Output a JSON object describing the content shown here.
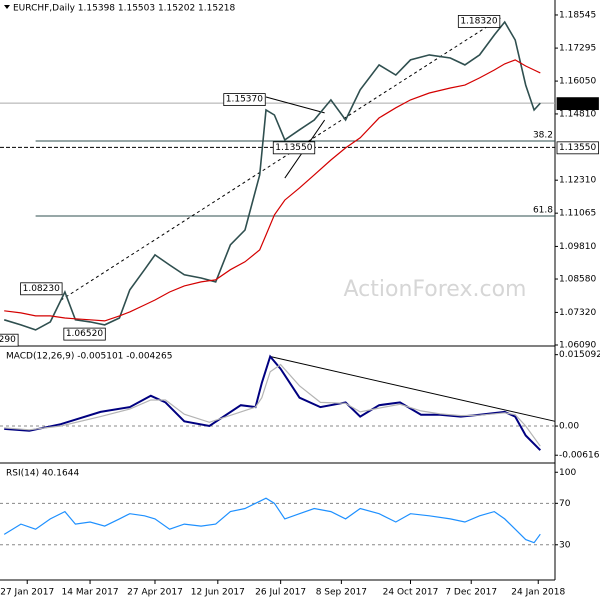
{
  "chart_data": [
    {
      "type": "line",
      "title": "EURCHF,Daily  1.15398 1.15503 1.15202 1.15218",
      "watermark": "ActionForex.com",
      "xlim": [
        0,
        265
      ],
      "ylim": [
        1.0609,
        1.1911
      ],
      "yticks": [
        1.18545,
        1.17295,
        {
          "value": 1.1605,
          "label": "1.16050"
        },
        {
          "value": 1.1481,
          "label": "1.14810"
        },
        {
          "value": 1.1231,
          "label": "1.12310"
        },
        1.11065,
        {
          "value": 1.0981,
          "label": "1.09810"
        },
        {
          "value": 1.0858,
          "label": "1.08580"
        },
        {
          "value": 1.0732,
          "label": "1.07320"
        },
        {
          "value": 1.0609,
          "label": "1.06090"
        }
      ],
      "x": [
        2,
        10,
        17,
        24,
        31,
        36,
        43,
        50,
        57,
        62,
        69,
        74,
        81,
        88,
        96,
        103,
        110,
        117,
        124,
        127,
        131,
        136,
        143,
        150,
        158,
        165,
        172,
        181,
        189,
        196,
        205,
        215,
        222,
        229,
        236,
        241,
        246,
        251,
        255,
        258
      ],
      "series": [
        {
          "name": "EURCHF",
          "color": "#2f4f4f",
          "values": [
            1.0704,
            1.0685,
            1.0666,
            1.0696,
            1.0809,
            1.0704,
            1.0696,
            1.0685,
            1.0711,
            1.0817,
            1.0893,
            1.0949,
            1.0911,
            1.0874,
            1.0862,
            1.0847,
            1.0987,
            1.1043,
            1.1251,
            1.1496,
            1.1477,
            1.1383,
            1.1421,
            1.1458,
            1.1534,
            1.1458,
            1.1572,
            1.1666,
            1.1628,
            1.1685,
            1.1704,
            1.1692,
            1.1666,
            1.1704,
            1.1779,
            1.1828,
            1.176,
            1.159,
            1.1496,
            1.15218
          ]
        },
        {
          "name": "SMA",
          "color": "#d40000",
          "values": [
            1.0738,
            1.073,
            1.0719,
            1.0719,
            1.0711,
            1.0708,
            1.0704,
            1.07,
            1.0719,
            1.0734,
            1.076,
            1.0779,
            1.0809,
            1.0832,
            1.0847,
            1.0855,
            1.0893,
            1.0923,
            1.0968,
            1.1024,
            1.11,
            1.1156,
            1.1202,
            1.1251,
            1.1307,
            1.1353,
            1.1391,
            1.1466,
            1.1504,
            1.1534,
            1.156,
            1.1579,
            1.159,
            1.1617,
            1.1647,
            1.167,
            1.1685,
            1.1662,
            1.1647,
            1.1636
          ]
        }
      ],
      "annotations": [
        {
          "label": "1.18320",
          "x": 239,
          "value": 1.1832
        },
        {
          "label": "1.15370",
          "x": 127,
          "value": 1.1537
        },
        {
          "label": "1.13550",
          "x": 130,
          "value": 1.1355
        },
        {
          "label": "1.08230",
          "x": 30,
          "value": 1.0823
        },
        {
          "label": "1.06520",
          "x": 30,
          "value": 1.0652
        },
        {
          "label": "290",
          "x": 9,
          "value": 1.0629
        }
      ],
      "levels": [
        {
          "label": "38.2",
          "x": 17,
          "value": 1.1379
        },
        {
          "label": "61.8",
          "x": 17,
          "value": 1.1096
        }
      ],
      "hline": {
        "value": 1.1355,
        "label": "1.13550"
      },
      "last": {
        "value": 1.15218,
        "label": "1.15218"
      },
      "trendlines": [
        {
          "x": [
            29,
            239
          ],
          "values": [
            1.0778,
            1.1843
          ]
        },
        {
          "x": [
            127,
            155
          ],
          "values": [
            1.1545,
            1.1485
          ]
        },
        {
          "x": [
            136,
            155
          ],
          "values": [
            1.1239,
            1.1458
          ]
        }
      ]
    },
    {
      "type": "line",
      "title": "MACD(12,26,9) -0.005101 -0.004265",
      "xlim": [
        0,
        265
      ],
      "ylim": [
        -0.0076,
        0.0165
      ],
      "yticks": [
        0.015092,
        {
          "value": 0,
          "label": "0.00"
        },
        -0.006167
      ],
      "hlines": [
        0
      ],
      "x": [
        2,
        14,
        29,
        48,
        62,
        72,
        79,
        88,
        100,
        115,
        122,
        125,
        129,
        134,
        143,
        153,
        165,
        172,
        181,
        191,
        201,
        210,
        220,
        229,
        241,
        246,
        251,
        258
      ],
      "series": [
        {
          "name": "MACD",
          "color": "#000080",
          "values": [
            -0.0006,
            -0.001,
            0.0004,
            0.003,
            0.004,
            0.0064,
            0.005,
            0.001,
            0.0,
            0.0044,
            0.004,
            0.0091,
            0.0147,
            0.0121,
            0.006,
            0.004,
            0.005,
            0.002,
            0.0044,
            0.005,
            0.0024,
            0.0024,
            0.002,
            0.0024,
            0.003,
            0.002,
            -0.002,
            -0.005101
          ]
        },
        {
          "name": "Signal",
          "color": "#b4b4b4",
          "values": [
            -0.0004,
            -0.0008,
            0.0,
            0.002,
            0.0036,
            0.0055,
            0.0055,
            0.0025,
            0.0008,
            0.003,
            0.004,
            0.006,
            0.0115,
            0.013,
            0.0085,
            0.005,
            0.0048,
            0.003,
            0.0038,
            0.0046,
            0.0032,
            0.0026,
            0.0022,
            0.0023,
            0.0028,
            0.0024,
            0.0,
            -0.004265
          ]
        }
      ],
      "trendlines": [
        {
          "x": [
            129,
            265
          ],
          "values": [
            0.0147,
            0.001
          ]
        }
      ]
    },
    {
      "type": "line",
      "title": "RSI(14) 40.1644",
      "xlim": [
        0,
        265
      ],
      "ylim": [
        -4,
        107
      ],
      "yticks": [
        100,
        70,
        30
      ],
      "hlines": [
        70,
        30
      ],
      "xticks": [
        {
          "value": 13,
          "label": "27 Jan 2017"
        },
        {
          "value": 43,
          "label": "14 Mar 2017"
        },
        {
          "value": 74,
          "label": "27 Apr 2017"
        },
        {
          "value": 104,
          "label": "12 Jun 2017"
        },
        {
          "value": 134,
          "label": "26 Jul 2017"
        },
        {
          "value": 163,
          "label": "8 Sep 2017"
        },
        {
          "value": 196,
          "label": "24 Oct 2017"
        },
        {
          "value": 225,
          "label": "7 Dec 2017"
        },
        {
          "value": 257,
          "label": "24 Jan 2018"
        }
      ],
      "x": [
        2,
        10,
        17,
        24,
        31,
        36,
        43,
        50,
        57,
        62,
        69,
        74,
        81,
        88,
        96,
        103,
        110,
        117,
        124,
        127,
        131,
        136,
        143,
        150,
        158,
        165,
        172,
        181,
        189,
        196,
        205,
        215,
        222,
        229,
        236,
        241,
        246,
        251,
        255,
        258
      ],
      "series": [
        {
          "name": "RSI",
          "color": "#1e90ff",
          "values": [
            40,
            50,
            45,
            55,
            62,
            50,
            52,
            48,
            55,
            60,
            58,
            55,
            45,
            50,
            48,
            50,
            62,
            65,
            72,
            75,
            70,
            55,
            60,
            65,
            62,
            55,
            65,
            60,
            52,
            60,
            58,
            55,
            52,
            58,
            62,
            55,
            45,
            35,
            32,
            40.1644
          ]
        }
      ]
    }
  ]
}
